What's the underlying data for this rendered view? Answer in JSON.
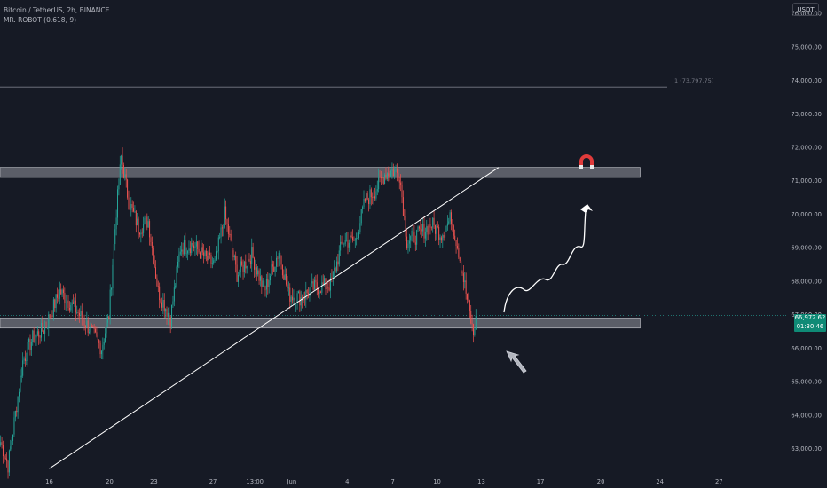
{
  "header": {
    "symbol_line": "Bitcoin / TetherUS, 2h, BINANCE",
    "indicator_line": "MR. ROBOT (0.618, 9)"
  },
  "currency_button": "USDT",
  "last_price": {
    "value": "66,972.62",
    "countdown": "01:30:46"
  },
  "colors": {
    "background": "#161a25",
    "up": "#26a69a",
    "down": "#ef5350",
    "zone": "#9598a1",
    "text": "#b2b5be"
  },
  "chart_data": {
    "type": "candlestick",
    "title": "Bitcoin / TetherUS, 2h, BINANCE",
    "y_ticks": [
      "76,000.00",
      "75,000.00",
      "74,000.00",
      "73,000.00",
      "72,000.00",
      "71,000.00",
      "70,000.00",
      "69,000.00",
      "68,000.00",
      "67,000.00",
      "66,000.00",
      "65,000.00",
      "64,000.00",
      "63,000.00"
    ],
    "y_tick_values": [
      76000,
      75000,
      74000,
      73000,
      72000,
      71000,
      70000,
      69000,
      68000,
      67000,
      66000,
      65000,
      64000,
      63000
    ],
    "ylim": [
      62300,
      76400
    ],
    "x_ticks": [
      "16",
      "20",
      "23",
      "27",
      "13:00",
      "Jun",
      "4",
      "7",
      "10",
      "13",
      "17",
      "20",
      "24",
      "27"
    ],
    "x_tick_bars": [
      40,
      89,
      125,
      173,
      207,
      237,
      282,
      319,
      355,
      391,
      439,
      488,
      536,
      584
    ],
    "bars_total": 640,
    "anchors": [
      [
        0,
        63200
      ],
      [
        6,
        62500
      ],
      [
        18,
        65600
      ],
      [
        26,
        66300
      ],
      [
        36,
        66600
      ],
      [
        48,
        67700
      ],
      [
        60,
        67200
      ],
      [
        72,
        66600
      ],
      [
        82,
        66000
      ],
      [
        88,
        67000
      ],
      [
        94,
        70100
      ],
      [
        98,
        71700
      ],
      [
        104,
        70400
      ],
      [
        112,
        69600
      ],
      [
        120,
        69800
      ],
      [
        128,
        67700
      ],
      [
        138,
        66900
      ],
      [
        146,
        69000
      ],
      [
        156,
        69100
      ],
      [
        166,
        68700
      ],
      [
        174,
        68500
      ],
      [
        182,
        70000
      ],
      [
        192,
        68200
      ],
      [
        204,
        68800
      ],
      [
        214,
        67700
      ],
      [
        226,
        68900
      ],
      [
        234,
        67600
      ],
      [
        244,
        67500
      ],
      [
        254,
        67800
      ],
      [
        268,
        67900
      ],
      [
        278,
        69200
      ],
      [
        288,
        69200
      ],
      [
        296,
        70400
      ],
      [
        304,
        70700
      ],
      [
        312,
        71200
      ],
      [
        318,
        71300
      ],
      [
        324,
        71200
      ],
      [
        330,
        69200
      ],
      [
        340,
        69400
      ],
      [
        350,
        69700
      ],
      [
        358,
        69400
      ],
      [
        366,
        69900
      ],
      [
        372,
        68900
      ],
      [
        384,
        66400
      ],
      [
        386,
        66970
      ]
    ],
    "zones": [
      {
        "from": 71100,
        "to": 71400,
        "bar_start": 0,
        "bar_end": 520
      },
      {
        "from": 66600,
        "to": 66900,
        "bar_start": 0,
        "bar_end": 520
      }
    ],
    "horizontal_line": {
      "value": 73797.75,
      "label": "1 (73,797.75)"
    },
    "trendline": {
      "from": [
        40,
        62400
      ],
      "to": [
        405,
        71400
      ]
    }
  }
}
